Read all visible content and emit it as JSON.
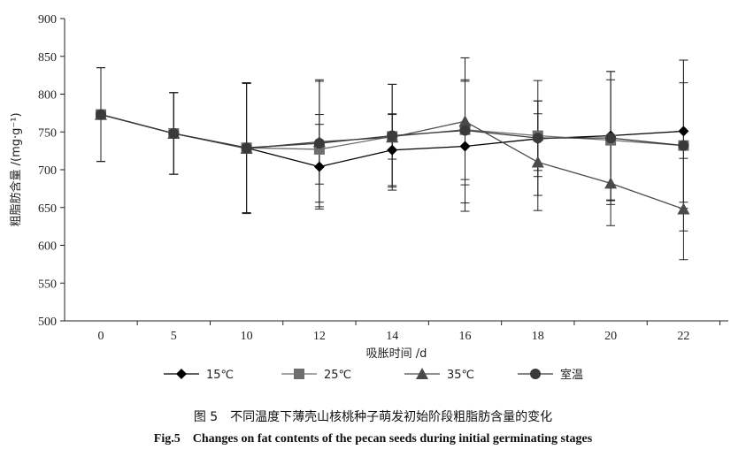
{
  "chart_data": {
    "type": "line",
    "xlabel": "吸胀时间 /d",
    "ylabel": "粗脂肪含量 /(mg·g⁻¹)",
    "x": [
      "0",
      "5",
      "10",
      "12",
      "14",
      "16",
      "18",
      "20",
      "22"
    ],
    "ylim": [
      500,
      900
    ],
    "yticks": [
      500,
      550,
      600,
      650,
      700,
      750,
      800,
      850,
      900
    ],
    "grid": false,
    "legend_position": "bottom",
    "series": [
      {
        "name": "15℃",
        "marker": "diamond",
        "values": [
          773,
          748,
          729,
          704,
          726,
          731,
          741,
          745,
          751
        ],
        "error": [
          62,
          54,
          86,
          56,
          47,
          86,
          50,
          85,
          94
        ]
      },
      {
        "name": "25℃",
        "marker": "square",
        "values": [
          773,
          748,
          729,
          727,
          744,
          753,
          745,
          739,
          732
        ],
        "error": [
          62,
          54,
          86,
          46,
          30,
          66,
          46,
          80,
          83
        ]
      },
      {
        "name": "35℃",
        "marker": "triangle",
        "values": [
          773,
          748,
          728,
          737,
          743,
          764,
          710,
          682,
          648
        ],
        "error": [
          62,
          54,
          86,
          80,
          70,
          84,
          64,
          56,
          67
        ]
      },
      {
        "name": "室温",
        "marker": "circle",
        "values": [
          773,
          748,
          729,
          735,
          745,
          752,
          742,
          742,
          732
        ],
        "error": [
          62,
          54,
          86,
          84,
          68,
          96,
          76,
          88,
          113
        ]
      }
    ],
    "colors": {
      "15℃": "#000000",
      "25℃": "#6e6e6e",
      "35℃": "#4a4a4a",
      "室温": "#3a3a3a"
    }
  },
  "caption": {
    "cn": "图 5　不同温度下薄壳山核桃种子萌发初始阶段粗脂肪含量的变化",
    "en": "Fig.5　Changes on fat contents of the pecan seeds during initial germinating stages"
  }
}
